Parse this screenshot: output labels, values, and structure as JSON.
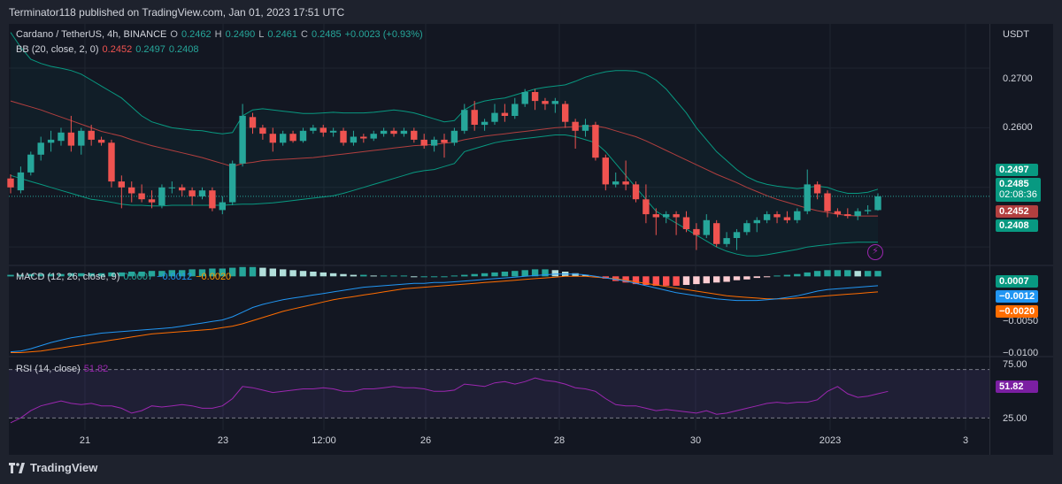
{
  "header": {
    "published_text": "Terminator118 published on TradingView.com, Jan 01, 2023 17:51 UTC"
  },
  "legend": {
    "symbol": "Cardano / TetherUS, 4h, BINANCE",
    "o_label": "O",
    "o_value": "0.2462",
    "h_label": "H",
    "h_value": "0.2490",
    "l_label": "L",
    "l_value": "0.2461",
    "c_label": "C",
    "c_value": "0.2485",
    "change": "+0.0023 (+0.93%)",
    "bb_label": "BB (20, close, 2, 0)",
    "bb_basis": "0.2452",
    "bb_upper": "0.2497",
    "bb_lower": "0.2408",
    "macd_label": "MACD (12, 26, close, 9)",
    "macd_hist": "0.0007",
    "macd_line": "−0.0012",
    "macd_signal": "−0.0020",
    "rsi_label": "RSI (14, close)",
    "rsi_value": "51.82"
  },
  "axis": {
    "currency": "USDT",
    "price_ticks": [
      "0.2700",
      "0.2600"
    ],
    "macd_ticks": [
      "−0.0050",
      "−0.0100"
    ],
    "rsi_ticks": [
      "75.00",
      "25.00"
    ],
    "time_labels": [
      "21",
      "23",
      "12:00",
      "26",
      "28",
      "30",
      "2023",
      "3"
    ]
  },
  "tags": {
    "bb_upper": "0.2497",
    "last_price": "0.2485",
    "countdown": "02:08:36",
    "bb_basis": "0.2452",
    "bb_lower": "0.2408",
    "macd_hist": "0.0007",
    "macd_line": "−0.0012",
    "macd_signal": "−0.0020",
    "rsi": "51.82"
  },
  "colors": {
    "up": "#26a69a",
    "down": "#ef5350",
    "bb_band": "#089981",
    "bb_basis": "#b23f3f",
    "macd_line": "#2196f3",
    "signal_line": "#ff6d00",
    "rsi_line": "#9c27b0",
    "rsi_band": "#7e57c2"
  },
  "footer": {
    "brand": "TradingView"
  },
  "chart_data": [
    {
      "type": "candlestick",
      "title": "Cardano / TetherUS, 4h, BINANCE",
      "ylabel": "USDT",
      "ylim": [
        0.2375,
        0.2755
      ],
      "x_ticks": [
        "21",
        "23",
        "12:00",
        "26",
        "28",
        "30",
        "2023",
        "3"
      ],
      "candles": [
        [
          0.2515,
          0.2522,
          0.249,
          0.25
        ],
        [
          0.2495,
          0.2535,
          0.249,
          0.2525
        ],
        [
          0.2525,
          0.256,
          0.252,
          0.2555
        ],
        [
          0.2555,
          0.2585,
          0.2545,
          0.2575
        ],
        [
          0.2575,
          0.2595,
          0.256,
          0.258
        ],
        [
          0.2578,
          0.26,
          0.257,
          0.2592
        ],
        [
          0.2592,
          0.262,
          0.256,
          0.257
        ],
        [
          0.257,
          0.26,
          0.2555,
          0.2595
        ],
        [
          0.2595,
          0.2605,
          0.257,
          0.258
        ],
        [
          0.258,
          0.2585,
          0.257,
          0.2575
        ],
        [
          0.2575,
          0.258,
          0.25,
          0.251
        ],
        [
          0.251,
          0.252,
          0.2465,
          0.25
        ],
        [
          0.25,
          0.251,
          0.2475,
          0.249
        ],
        [
          0.249,
          0.2505,
          0.2475,
          0.248
        ],
        [
          0.248,
          0.2495,
          0.2465,
          0.2475
        ],
        [
          0.247,
          0.2505,
          0.2465,
          0.25
        ],
        [
          0.25,
          0.251,
          0.249,
          0.25
        ],
        [
          0.25,
          0.2505,
          0.2485,
          0.2495
        ],
        [
          0.2495,
          0.25,
          0.247,
          0.2485
        ],
        [
          0.2485,
          0.25,
          0.248,
          0.2495
        ],
        [
          0.2495,
          0.25,
          0.246,
          0.2465
        ],
        [
          0.2462,
          0.2485,
          0.2455,
          0.2475
        ],
        [
          0.2475,
          0.2545,
          0.247,
          0.254
        ],
        [
          0.254,
          0.264,
          0.2535,
          0.262
        ],
        [
          0.2618,
          0.2625,
          0.259,
          0.26
        ],
        [
          0.26,
          0.2605,
          0.258,
          0.259
        ],
        [
          0.259,
          0.26,
          0.256,
          0.2575
        ],
        [
          0.2575,
          0.2595,
          0.257,
          0.259
        ],
        [
          0.259,
          0.2595,
          0.2575,
          0.2578
        ],
        [
          0.2578,
          0.26,
          0.2575,
          0.2595
        ],
        [
          0.2595,
          0.2605,
          0.259,
          0.26
        ],
        [
          0.26,
          0.2605,
          0.2585,
          0.2592
        ],
        [
          0.2592,
          0.26,
          0.2585,
          0.2595
        ],
        [
          0.2595,
          0.26,
          0.257,
          0.2575
        ],
        [
          0.2575,
          0.2595,
          0.257,
          0.2585
        ],
        [
          0.2585,
          0.259,
          0.2575,
          0.2582
        ],
        [
          0.2582,
          0.2595,
          0.2578,
          0.259
        ],
        [
          0.259,
          0.26,
          0.2585,
          0.2595
        ],
        [
          0.2595,
          0.26,
          0.2585,
          0.259
        ],
        [
          0.259,
          0.26,
          0.2585,
          0.2595
        ],
        [
          0.2595,
          0.26,
          0.2575,
          0.258
        ],
        [
          0.258,
          0.259,
          0.2565,
          0.257
        ],
        [
          0.257,
          0.2585,
          0.256,
          0.258
        ],
        [
          0.258,
          0.259,
          0.255,
          0.2575
        ],
        [
          0.2575,
          0.26,
          0.257,
          0.2595
        ],
        [
          0.2595,
          0.264,
          0.259,
          0.263
        ],
        [
          0.263,
          0.2645,
          0.2595,
          0.2605
        ],
        [
          0.2605,
          0.2615,
          0.2595,
          0.261
        ],
        [
          0.261,
          0.264,
          0.2605,
          0.2625
        ],
        [
          0.2625,
          0.264,
          0.261,
          0.262
        ],
        [
          0.262,
          0.265,
          0.2615,
          0.264
        ],
        [
          0.264,
          0.2665,
          0.2635,
          0.266
        ],
        [
          0.266,
          0.2665,
          0.263,
          0.2645
        ],
        [
          0.2645,
          0.265,
          0.263,
          0.264
        ],
        [
          0.264,
          0.265,
          0.2625,
          0.2645
        ],
        [
          0.264,
          0.2645,
          0.26,
          0.261
        ],
        [
          0.261,
          0.2615,
          0.2565,
          0.2595
        ],
        [
          0.2595,
          0.2615,
          0.2585,
          0.2605
        ],
        [
          0.2605,
          0.261,
          0.2545,
          0.255
        ],
        [
          0.255,
          0.2555,
          0.2495,
          0.2505
        ],
        [
          0.2505,
          0.2525,
          0.25,
          0.251
        ],
        [
          0.251,
          0.2545,
          0.2495,
          0.2505
        ],
        [
          0.2505,
          0.251,
          0.2475,
          0.248
        ],
        [
          0.248,
          0.2505,
          0.244,
          0.2455
        ],
        [
          0.2455,
          0.2465,
          0.242,
          0.245
        ],
        [
          0.245,
          0.246,
          0.244,
          0.2455
        ],
        [
          0.2455,
          0.246,
          0.242,
          0.245
        ],
        [
          0.245,
          0.246,
          0.2425,
          0.243
        ],
        [
          0.243,
          0.244,
          0.2395,
          0.242
        ],
        [
          0.242,
          0.2455,
          0.2415,
          0.2445
        ],
        [
          0.244,
          0.2445,
          0.24,
          0.2405
        ],
        [
          0.2405,
          0.2425,
          0.24,
          0.2415
        ],
        [
          0.2415,
          0.243,
          0.2395,
          0.2425
        ],
        [
          0.2425,
          0.2445,
          0.242,
          0.244
        ],
        [
          0.244,
          0.245,
          0.2425,
          0.2445
        ],
        [
          0.2445,
          0.246,
          0.244,
          0.2455
        ],
        [
          0.2455,
          0.246,
          0.244,
          0.245
        ],
        [
          0.245,
          0.246,
          0.244,
          0.2445
        ],
        [
          0.2445,
          0.2465,
          0.244,
          0.246
        ],
        [
          0.246,
          0.253,
          0.2455,
          0.2505
        ],
        [
          0.2505,
          0.251,
          0.248,
          0.249
        ],
        [
          0.249,
          0.2495,
          0.245,
          0.246
        ],
        [
          0.246,
          0.2465,
          0.245,
          0.2455
        ],
        [
          0.2455,
          0.2465,
          0.2448,
          0.2452
        ],
        [
          0.2452,
          0.2465,
          0.2445,
          0.246
        ],
        [
          0.246,
          0.247,
          0.2455,
          0.2462
        ],
        [
          0.2462,
          0.249,
          0.2461,
          0.2485
        ]
      ],
      "bb_upper": [
        0.276,
        0.2735,
        0.2715,
        0.2708,
        0.2703,
        0.27,
        0.2696,
        0.269,
        0.268,
        0.267,
        0.266,
        0.265,
        0.2635,
        0.262,
        0.261,
        0.2605,
        0.26,
        0.2598,
        0.2596,
        0.2595,
        0.2592,
        0.259,
        0.2592,
        0.262,
        0.263,
        0.2632,
        0.263,
        0.2628,
        0.2626,
        0.2624,
        0.2624,
        0.2625,
        0.2626,
        0.2625,
        0.2625,
        0.2625,
        0.2626,
        0.2628,
        0.263,
        0.2628,
        0.2625,
        0.262,
        0.2615,
        0.261,
        0.2612,
        0.263,
        0.264,
        0.2645,
        0.2648,
        0.265,
        0.2655,
        0.266,
        0.2665,
        0.2668,
        0.267,
        0.2672,
        0.2678,
        0.2685,
        0.269,
        0.2694,
        0.2696,
        0.2696,
        0.2695,
        0.269,
        0.268,
        0.2665,
        0.2645,
        0.2625,
        0.26,
        0.258,
        0.256,
        0.2545,
        0.253,
        0.2518,
        0.251,
        0.2505,
        0.2502,
        0.25,
        0.2498,
        0.25,
        0.2502,
        0.25,
        0.2494,
        0.249,
        0.249,
        0.2492,
        0.2497
      ],
      "bb_basis": [
        0.2645,
        0.264,
        0.2635,
        0.263,
        0.2624,
        0.2618,
        0.2612,
        0.2606,
        0.26,
        0.2594,
        0.259,
        0.2586,
        0.258,
        0.2575,
        0.257,
        0.2566,
        0.2562,
        0.2558,
        0.2554,
        0.255,
        0.2545,
        0.254,
        0.2535,
        0.254,
        0.2542,
        0.2545,
        0.2546,
        0.2547,
        0.2548,
        0.2549,
        0.255,
        0.2552,
        0.2554,
        0.2556,
        0.2558,
        0.256,
        0.2562,
        0.2564,
        0.2566,
        0.2568,
        0.257,
        0.2571,
        0.2572,
        0.2574,
        0.2576,
        0.258,
        0.2583,
        0.2586,
        0.2588,
        0.259,
        0.2592,
        0.2594,
        0.2596,
        0.2598,
        0.26,
        0.2601,
        0.2602,
        0.2603,
        0.2603,
        0.26,
        0.2595,
        0.259,
        0.2585,
        0.2578,
        0.257,
        0.2562,
        0.2554,
        0.2546,
        0.2538,
        0.253,
        0.2522,
        0.2515,
        0.2508,
        0.25,
        0.2493,
        0.2486,
        0.248,
        0.2475,
        0.247,
        0.2465,
        0.2461,
        0.2458,
        0.2455,
        0.2453,
        0.2452,
        0.2452,
        0.2452
      ],
      "bb_lower": [
        0.252,
        0.2515,
        0.251,
        0.2505,
        0.25,
        0.2495,
        0.249,
        0.2485,
        0.248,
        0.2478,
        0.2475,
        0.2472,
        0.247,
        0.247,
        0.2469,
        0.2469,
        0.247,
        0.247,
        0.247,
        0.247,
        0.247,
        0.247,
        0.2471,
        0.2472,
        0.2472,
        0.2473,
        0.2474,
        0.2476,
        0.2478,
        0.248,
        0.2482,
        0.2484,
        0.2486,
        0.249,
        0.2495,
        0.25,
        0.2505,
        0.251,
        0.2515,
        0.252,
        0.2525,
        0.2528,
        0.253,
        0.2535,
        0.254,
        0.256,
        0.2565,
        0.257,
        0.2575,
        0.2578,
        0.258,
        0.2582,
        0.2584,
        0.2586,
        0.2588,
        0.2588,
        0.2585,
        0.258,
        0.2575,
        0.256,
        0.254,
        0.252,
        0.25,
        0.248,
        0.246,
        0.245,
        0.244,
        0.243,
        0.242,
        0.241,
        0.24,
        0.2393,
        0.2388,
        0.2385,
        0.2385,
        0.2387,
        0.239,
        0.2393,
        0.2396,
        0.24,
        0.2402,
        0.2404,
        0.2406,
        0.2407,
        0.2408,
        0.2408,
        0.2408
      ]
    },
    {
      "type": "bar+line",
      "title": "MACD (12, 26, close, 9)",
      "ylim": [
        -0.0102,
        0.0014
      ],
      "y_ticks": [
        -0.005,
        -0.01
      ],
      "histogram": [
        0.0002,
        0.0002,
        0.0003,
        0.0003,
        0.0003,
        0.0003,
        0.0004,
        0.0004,
        0.0004,
        0.0004,
        0.0005,
        0.0005,
        0.0006,
        0.0006,
        0.0007,
        0.0007,
        0.0008,
        0.0008,
        0.0009,
        0.0009,
        0.001,
        0.001,
        0.0011,
        0.0012,
        0.0012,
        0.0011,
        0.001,
        0.0009,
        0.0008,
        0.0007,
        0.0006,
        0.0005,
        0.0004,
        0.0003,
        0.0002,
        0.0002,
        0.0001,
        0.0001,
        0.0001,
        0.0001,
        0.0,
        0.0,
        0.0,
        0.0,
        0.0001,
        0.0002,
        0.0003,
        0.0004,
        0.0005,
        0.0006,
        0.0007,
        0.0008,
        0.0009,
        0.0009,
        0.0008,
        0.0006,
        0.0004,
        0.0002,
        -0.0001,
        -0.0003,
        -0.0006,
        -0.0008,
        -0.001,
        -0.0011,
        -0.0012,
        -0.0012,
        -0.0012,
        -0.0011,
        -0.001,
        -0.0009,
        -0.0008,
        -0.0007,
        -0.0005,
        -0.0004,
        -0.0002,
        -0.0001,
        0.0001,
        0.0002,
        0.0003,
        0.0005,
        0.0007,
        0.0008,
        0.0008,
        0.0008,
        0.0007,
        0.0007,
        0.0007
      ],
      "macd": [
        -0.0097,
        -0.0096,
        -0.0093,
        -0.0089,
        -0.0085,
        -0.0082,
        -0.0079,
        -0.0077,
        -0.0075,
        -0.0073,
        -0.0072,
        -0.0071,
        -0.007,
        -0.0069,
        -0.0068,
        -0.0067,
        -0.0066,
        -0.0064,
        -0.0062,
        -0.006,
        -0.0058,
        -0.0056,
        -0.0052,
        -0.0046,
        -0.004,
        -0.0036,
        -0.0033,
        -0.003,
        -0.0028,
        -0.0026,
        -0.0024,
        -0.0022,
        -0.002,
        -0.0018,
        -0.0016,
        -0.0014,
        -0.0013,
        -0.0012,
        -0.0011,
        -0.001,
        -0.0009,
        -0.0009,
        -0.0008,
        -0.0008,
        -0.0007,
        -0.0006,
        -0.0005,
        -0.0004,
        -0.0003,
        -0.0002,
        -0.0001,
        0.0,
        0.0001,
        0.0002,
        0.0003,
        0.0003,
        0.0003,
        0.0002,
        0.0,
        -0.0002,
        -0.0004,
        -0.0006,
        -0.0009,
        -0.0012,
        -0.0015,
        -0.0018,
        -0.0021,
        -0.0023,
        -0.0025,
        -0.0027,
        -0.0029,
        -0.003,
        -0.0031,
        -0.0031,
        -0.0031,
        -0.003,
        -0.0029,
        -0.0027,
        -0.0025,
        -0.0022,
        -0.0019,
        -0.0017,
        -0.0016,
        -0.0015,
        -0.0014,
        -0.0013,
        -0.0012
      ],
      "signal": [
        -0.0098,
        -0.0098,
        -0.0097,
        -0.0096,
        -0.0094,
        -0.0092,
        -0.009,
        -0.0088,
        -0.0086,
        -0.0084,
        -0.0082,
        -0.008,
        -0.0078,
        -0.0076,
        -0.0074,
        -0.0073,
        -0.0072,
        -0.0071,
        -0.007,
        -0.0069,
        -0.0068,
        -0.0066,
        -0.0064,
        -0.0061,
        -0.0057,
        -0.0053,
        -0.0049,
        -0.0045,
        -0.0042,
        -0.0039,
        -0.0036,
        -0.0033,
        -0.003,
        -0.0028,
        -0.0026,
        -0.0024,
        -0.0022,
        -0.002,
        -0.0018,
        -0.0016,
        -0.0015,
        -0.0014,
        -0.0013,
        -0.0012,
        -0.0011,
        -0.001,
        -0.0009,
        -0.0008,
        -0.0007,
        -0.0006,
        -0.0005,
        -0.0004,
        -0.0003,
        -0.0002,
        -0.0001,
        0.0,
        0.0,
        0.0,
        -0.0001,
        -0.0002,
        -0.0003,
        -0.0005,
        -0.0007,
        -0.0009,
        -0.0011,
        -0.0013,
        -0.0015,
        -0.0017,
        -0.0019,
        -0.0021,
        -0.0023,
        -0.0025,
        -0.0026,
        -0.0027,
        -0.0028,
        -0.0029,
        -0.0029,
        -0.0029,
        -0.0028,
        -0.0027,
        -0.0026,
        -0.0025,
        -0.0024,
        -0.0023,
        -0.0022,
        -0.0021,
        -0.002
      ]
    },
    {
      "type": "line",
      "title": "RSI (14, close)",
      "ylim": [
        20,
        80
      ],
      "band": [
        30,
        70
      ],
      "y_ticks": [
        75,
        25
      ],
      "values": [
        26,
        30,
        36,
        40,
        42,
        44,
        42,
        41,
        42,
        40,
        40,
        38,
        34,
        36,
        40,
        39,
        40,
        41,
        40,
        38,
        38,
        40,
        46,
        56,
        55,
        53,
        51,
        52,
        53,
        54,
        54,
        55,
        54,
        52,
        52,
        54,
        54,
        55,
        56,
        55,
        55,
        54,
        52,
        52,
        53,
        58,
        57,
        56,
        59,
        60,
        58,
        60,
        63,
        61,
        60,
        58,
        55,
        54,
        52,
        46,
        41,
        40,
        40,
        38,
        36,
        37,
        36,
        35,
        34,
        36,
        33,
        34,
        36,
        38,
        40,
        42,
        43,
        42,
        43,
        43,
        45,
        52,
        56,
        50,
        47,
        48,
        50,
        52
      ]
    }
  ]
}
